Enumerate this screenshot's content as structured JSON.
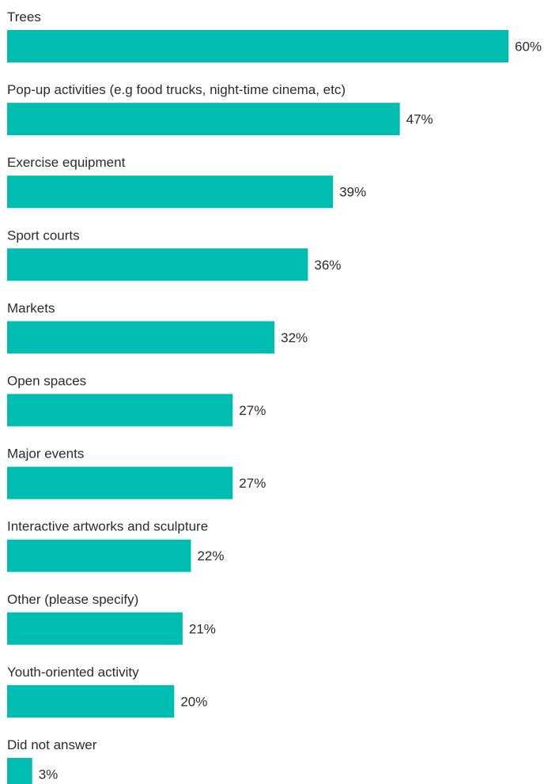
{
  "chart_data": {
    "type": "bar",
    "orientation": "horizontal",
    "categories": [
      "Trees",
      "Pop-up activities (e.g food trucks,  night-time cinema, etc)",
      "Exercise equipment",
      "Sport courts",
      "Markets",
      "Open spaces",
      "Major events",
      " Interactive artworks and sculpture",
      "Other (please specify)",
      "Youth-oriented activity",
      "Did not answer"
    ],
    "values": [
      60,
      47,
      39,
      36,
      32,
      27,
      27,
      22,
      21,
      20,
      3
    ],
    "value_labels": [
      "60%",
      "47%",
      "39%",
      "36%",
      "32%",
      "27%",
      "27%",
      "22%",
      "21%",
      "20%",
      "3%"
    ],
    "unit": "%",
    "bar_color": "#00BDB1",
    "title": "",
    "xlabel": "",
    "ylabel": "",
    "xlim": [
      0,
      60
    ],
    "grid": false,
    "legend": "none"
  }
}
